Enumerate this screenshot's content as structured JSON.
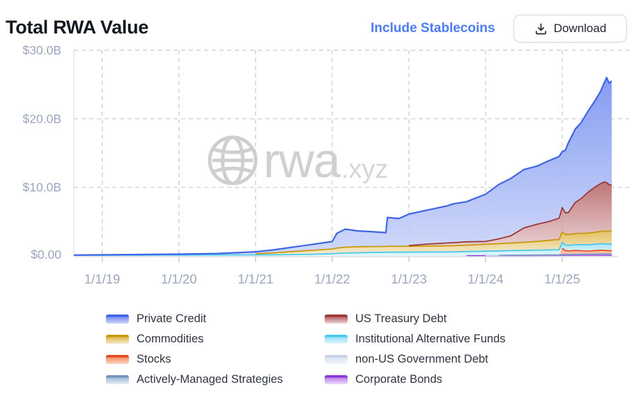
{
  "header": {
    "title": "Total RWA Value",
    "stablecoins_label": "Include Stablecoins",
    "download_label": "Download"
  },
  "watermark": {
    "text": "rwa",
    "suffix": ".xyz"
  },
  "colors": {
    "title_text": "#141820",
    "link": "#4d7cf3",
    "button_border": "#d3d6dc",
    "button_text": "#22262f",
    "axis_text": "#9aa6c0",
    "gridline": "#c9c9c9",
    "axis_line": "#e2e6ee",
    "watermark": "#d0d0d0",
    "legend_text": "#2e3440"
  },
  "chart_data": {
    "type": "area",
    "stacked": true,
    "unit": "USD billions",
    "x_unit": "decimal_year",
    "x": [
      2018.63,
      2019.0,
      2019.5,
      2020.0,
      2020.5,
      2021.0,
      2021.25,
      2021.5,
      2021.75,
      2022.0,
      2022.06,
      2022.17,
      2022.33,
      2022.5,
      2022.7,
      2022.72,
      2022.87,
      2023.0,
      2023.25,
      2023.5,
      2023.58,
      2023.75,
      2024.0,
      2024.17,
      2024.33,
      2024.5,
      2024.67,
      2024.83,
      2024.96,
      2025.0,
      2025.04,
      2025.08,
      2025.17,
      2025.25,
      2025.33,
      2025.42,
      2025.5,
      2025.55,
      2025.58,
      2025.61,
      2025.645
    ],
    "x_axis": {
      "ticks": [
        2019,
        2020,
        2021,
        2022,
        2023,
        2024,
        2025
      ],
      "tick_labels": [
        "1/1/19",
        "1/1/20",
        "1/1/21",
        "1/1/22",
        "1/1/23",
        "1/1/24",
        "1/1/25"
      ]
    },
    "y_axis": {
      "range": [
        0,
        30
      ],
      "ticks": [
        0,
        10,
        20,
        30
      ],
      "tick_labels": [
        "$0.00",
        "$10.0B",
        "$20.0B",
        "$30.0B"
      ]
    },
    "series": [
      {
        "name": "Corporate Bonds",
        "color_line": "#8d35da",
        "color_fill_top": "#bd85ea",
        "color_fill_bottom": "#eadcf9",
        "line_width": 1.4,
        "values": [
          0,
          0,
          0,
          0,
          0,
          0,
          0,
          0,
          0,
          0,
          0,
          0,
          0,
          0,
          0,
          0,
          0,
          0,
          0,
          0,
          0,
          0.04,
          0.04,
          0.04,
          0.05,
          0.05,
          0.05,
          0.06,
          0.06,
          0.08,
          0.08,
          0.08,
          0.08,
          0.09,
          0.09,
          0.09,
          0.1,
          0.1,
          0.1,
          0.1,
          0.1
        ]
      },
      {
        "name": "non-US Government Debt",
        "color_line": "#c5d1e8",
        "color_fill_top": "#dbe3f2",
        "color_fill_bottom": "#f2f5fb",
        "line_width": 1.4,
        "values": [
          0,
          0,
          0,
          0,
          0,
          0,
          0,
          0,
          0,
          0,
          0,
          0,
          0,
          0,
          0,
          0,
          0,
          0,
          0,
          0,
          0,
          0,
          0.03,
          0.03,
          0.04,
          0.04,
          0.05,
          0.05,
          0.06,
          0.1,
          0.1,
          0.1,
          0.11,
          0.12,
          0.12,
          0.13,
          0.14,
          0.15,
          0.15,
          0.15,
          0.15
        ]
      },
      {
        "name": "Actively-Managed Strategies",
        "color_line": "#6f94ba",
        "color_fill_top": "#a5bdd6",
        "color_fill_bottom": "#e6edf5",
        "line_width": 1.4,
        "values": [
          0,
          0,
          0,
          0,
          0,
          0,
          0,
          0,
          0,
          0,
          0,
          0,
          0,
          0,
          0,
          0,
          0,
          0,
          0,
          0,
          0,
          0,
          0,
          0.02,
          0.03,
          0.03,
          0.04,
          0.04,
          0.05,
          0.05,
          0.05,
          0.05,
          0.05,
          0.05,
          0.05,
          0.05,
          0.05,
          0.05,
          0.05,
          0.05,
          0.05
        ]
      },
      {
        "name": "Stocks",
        "color_line": "#e5491f",
        "color_fill_top": "#f29468",
        "color_fill_bottom": "#fbd9c6",
        "line_width": 1.6,
        "values": [
          0,
          0,
          0,
          0,
          0,
          0,
          0,
          0,
          0,
          0,
          0,
          0,
          0,
          0,
          0,
          0,
          0,
          0,
          0,
          0,
          0,
          0,
          0,
          0,
          0,
          0,
          0,
          0,
          0,
          0.9,
          0.55,
          0.5,
          0.55,
          0.5,
          0.45,
          0.5,
          0.55,
          0.5,
          0.5,
          0.45,
          0.45
        ]
      },
      {
        "name": "Institutional Alternative Funds",
        "color_line": "#4ac9eb",
        "color_fill_top": "#9fe2f5",
        "color_fill_bottom": "#e2f6fc",
        "line_width": 1.8,
        "values": [
          0.1,
          0.1,
          0.12,
          0.13,
          0.15,
          0.15,
          0.16,
          0.2,
          0.24,
          0.33,
          0.37,
          0.41,
          0.46,
          0.51,
          0.53,
          0.54,
          0.55,
          0.55,
          0.57,
          0.58,
          0.58,
          0.6,
          0.62,
          0.64,
          0.66,
          0.68,
          0.7,
          0.72,
          0.74,
          0.85,
          0.8,
          0.82,
          0.85,
          0.88,
          0.9,
          0.92,
          0.95,
          0.95,
          0.95,
          0.95,
          1.0
        ]
      },
      {
        "name": "Commodities",
        "color_line": "#c8990e",
        "color_fill_top": "#e0ba50",
        "color_fill_bottom": "#f6ead0",
        "line_width": 1.8,
        "values": [
          0,
          0,
          0,
          0,
          0,
          0.17,
          0.29,
          0.44,
          0.58,
          0.68,
          0.78,
          0.86,
          0.88,
          0.85,
          0.85,
          0.86,
          0.86,
          0.85,
          0.86,
          0.88,
          0.9,
          0.93,
          1.0,
          1.05,
          1.1,
          1.18,
          1.28,
          1.4,
          1.5,
          1.52,
          1.55,
          1.58,
          1.6,
          1.65,
          1.7,
          1.75,
          1.8,
          1.85,
          1.85,
          1.9,
          1.95
        ]
      },
      {
        "name": "US Treasury Debt",
        "color_line": "#9c3838",
        "color_fill_top": "#b96a6a",
        "color_fill_bottom": "#ecd6da",
        "line_width": 1.8,
        "values": [
          0,
          0,
          0,
          0,
          0,
          0,
          0,
          0,
          0,
          0,
          0,
          0,
          0,
          0,
          0,
          0,
          0,
          0.12,
          0.3,
          0.42,
          0.45,
          0.48,
          0.42,
          0.7,
          1.05,
          2.1,
          2.5,
          2.75,
          3.1,
          3.55,
          3.15,
          3.2,
          4.55,
          5.1,
          5.9,
          6.55,
          6.95,
          7.2,
          7.1,
          6.8,
          6.6
        ]
      },
      {
        "name": "Private Credit",
        "color_line": "#3e65e4",
        "color_fill_top": "#7b93f0",
        "color_fill_bottom": "#ccd6f9",
        "line_width": 2.2,
        "values": [
          0.02,
          0.05,
          0.08,
          0.12,
          0.2,
          0.28,
          0.45,
          0.66,
          0.88,
          1.09,
          2.15,
          2.63,
          2.31,
          2.19,
          2.02,
          4.2,
          4.04,
          4.58,
          4.97,
          5.42,
          5.67,
          5.85,
          6.89,
          7.92,
          8.37,
          8.52,
          8.48,
          8.88,
          8.99,
          8.15,
          9.12,
          10.17,
          10.71,
          11.11,
          11.79,
          12.51,
          13.46,
          14.5,
          15.3,
          14.8,
          15.2
        ]
      }
    ],
    "legend": {
      "left_column": [
        "Private Credit",
        "Commodities",
        "Stocks",
        "Actively-Managed Strategies"
      ],
      "right_column": [
        "US Treasury Debt",
        "Institutional Alternative Funds",
        "non-US Government Debt",
        "Corporate Bonds"
      ]
    }
  }
}
